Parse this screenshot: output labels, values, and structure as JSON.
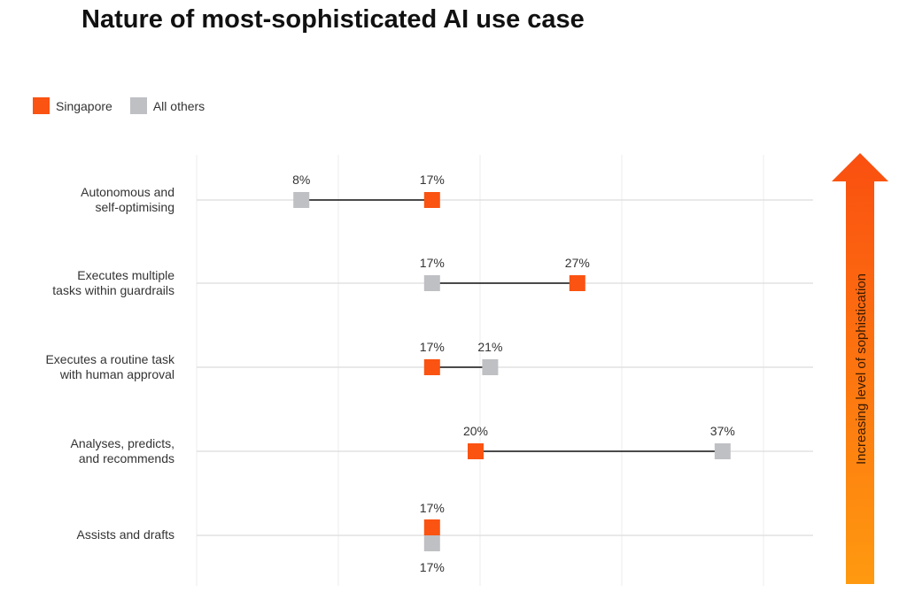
{
  "chart_data": {
    "type": "dumbbell",
    "title": "Nature of most-sophisticated AI use case",
    "legend": [
      {
        "name": "Singapore",
        "color": "#fa5312"
      },
      {
        "name": "All others",
        "color": "#bfc0c4"
      }
    ],
    "legend_placement": "top-left",
    "categories": [
      [
        "Autonomous and",
        "self-optimising"
      ],
      [
        "Executes multiple",
        "tasks within guardrails"
      ],
      [
        "Executes a routine task",
        "with human approval"
      ],
      [
        "Analyses, predicts,",
        "and recommends"
      ],
      [
        "Assists and drafts"
      ]
    ],
    "series": [
      {
        "name": "Singapore",
        "values": [
          17,
          27,
          17,
          20,
          17
        ]
      },
      {
        "name": "All others",
        "values": [
          8,
          17,
          21,
          37,
          17
        ]
      }
    ],
    "value_suffix": "%",
    "xlim": [
      0,
      40
    ],
    "grid": true,
    "arrow_label": "Increasing level of sophistication"
  }
}
